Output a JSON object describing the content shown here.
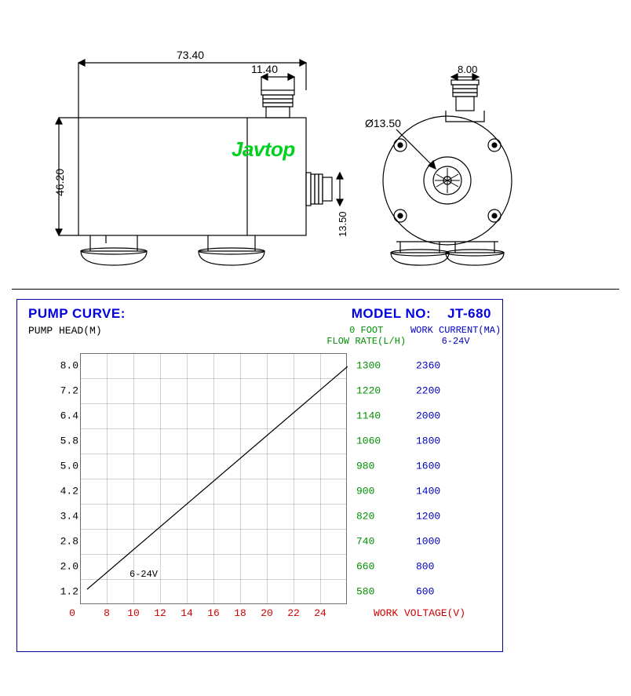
{
  "watermark": "Javtop",
  "drawing": {
    "dims": {
      "width_overall": "73.40",
      "outlet_width": "11.40",
      "height_body": "46.20",
      "inlet_height": "13.50",
      "inlet_diameter": "Ø13.50",
      "side_outlet_w": "8.00"
    },
    "colors": {
      "stroke": "#000000",
      "dim_text": "#000000"
    }
  },
  "chart": {
    "title_left": "PUMP CURVE:",
    "title_right_label": "MODEL NO:",
    "title_right_value": "JT-680",
    "y_axis_label": "PUMP HEAD(M)",
    "flow_label_top": "0 FOOT",
    "flow_label_bot": "FLOW RATE(L/H)",
    "current_label_top": "WORK CURRENT(MA)",
    "current_label_bot": "6-24V",
    "x_axis_label": "WORK VOLTAGE(V)",
    "curve_label": "6-24V",
    "y_ticks": [
      "8.0",
      "7.2",
      "6.4",
      "5.8",
      "5.0",
      "4.2",
      "3.4",
      "2.8",
      "2.0",
      "1.2"
    ],
    "x_ticks": [
      "0",
      "8",
      "10",
      "12",
      "14",
      "16",
      "18",
      "20",
      "22",
      "24"
    ],
    "flow_values": [
      "1300",
      "1220",
      "1140",
      "1060",
      "980",
      "900",
      "820",
      "740",
      "660",
      "580"
    ],
    "current_values": [
      "2360",
      "2200",
      "2000",
      "1800",
      "1600",
      "1400",
      "1200",
      "1000",
      "800",
      "600"
    ],
    "colors": {
      "frame": "#0000a0",
      "title": "#0000e0",
      "y_text": "#000000",
      "x_text": "#d00000",
      "flow_text": "#009000",
      "current_text": "#0000c0",
      "grid": "#bcbcbc",
      "curve": "#000000"
    },
    "plot": {
      "rows": 10,
      "cols": 10,
      "line_start": {
        "row": 9,
        "col": 0.2
      },
      "line_end": {
        "row": 0,
        "col": 10
      }
    }
  }
}
